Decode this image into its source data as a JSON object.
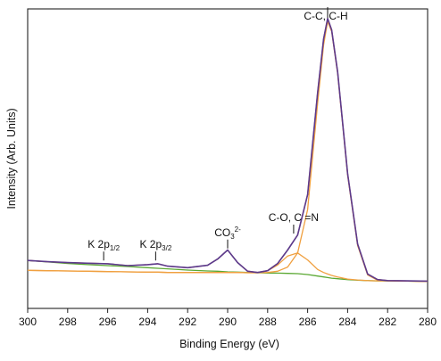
{
  "chart_data": {
    "type": "line",
    "title": "",
    "xlabel": "Binding Energy (eV)",
    "ylabel": "Intensity (Arb. Units)",
    "x_reversed": true,
    "xlim": [
      300,
      280
    ],
    "ylim": [
      0,
      100
    ],
    "x_ticks": [
      300,
      298,
      296,
      294,
      292,
      290,
      288,
      286,
      284,
      282,
      280
    ],
    "grid": false,
    "legend": "none",
    "x": [
      300,
      299,
      298,
      297,
      296,
      295,
      294,
      293.5,
      293,
      292,
      291,
      290.5,
      290,
      289.5,
      289,
      288.5,
      288,
      287.5,
      287,
      286.5,
      286,
      285.5,
      285.2,
      285,
      284.8,
      284.5,
      284,
      283.5,
      283,
      282.5,
      282,
      281,
      280
    ],
    "series": [
      {
        "color": "#e8413c",
        "values": [
          16.0,
          15.6,
          15.3,
          15.1,
          14.9,
          14.3,
          14.6,
          14.9,
          14.1,
          13.6,
          14.4,
          16.5,
          19.5,
          15.3,
          12.4,
          12.0,
          12.6,
          15.0,
          19.5,
          24.5,
          38.0,
          72.0,
          90.0,
          96.8,
          93.0,
          79.0,
          45.0,
          21.5,
          11.5,
          9.6,
          9.3,
          9.2,
          9.1
        ]
      },
      {
        "color": "#5b3b8c",
        "values": [
          16.0,
          15.6,
          15.3,
          15.1,
          14.9,
          14.3,
          14.6,
          14.9,
          14.1,
          13.6,
          14.4,
          16.5,
          19.5,
          15.3,
          12.4,
          12.0,
          12.6,
          15.0,
          19.5,
          24.5,
          38.0,
          72.0,
          90.0,
          96.8,
          93.0,
          79.0,
          45.0,
          21.5,
          11.5,
          9.6,
          9.3,
          9.2,
          9.1
        ]
      },
      {
        "color": "#f0a040",
        "values": [
          12.7,
          12.6,
          12.5,
          12.4,
          12.3,
          12.2,
          12.1,
          12.1,
          12.0,
          12.0,
          12.0,
          12.0,
          12.0,
          12.0,
          11.9,
          11.9,
          12.0,
          12.4,
          13.8,
          18.5,
          33.0,
          68.5,
          88.0,
          95.8,
          92.5,
          78.5,
          44.5,
          21.0,
          11.2,
          9.4,
          9.2,
          9.1,
          9.0
        ]
      },
      {
        "color": "#f0a040",
        "values": [
          12.7,
          12.6,
          12.5,
          12.4,
          12.3,
          12.2,
          12.1,
          12.1,
          12.0,
          12.0,
          12.0,
          12.0,
          12.0,
          12.0,
          11.9,
          11.9,
          12.6,
          14.5,
          17.5,
          18.5,
          16.2,
          13.0,
          12.0,
          11.5,
          11.0,
          10.5,
          9.8,
          9.5,
          9.3,
          9.2,
          9.2,
          9.1,
          9.0
        ]
      },
      {
        "color": "#5aa832",
        "values": [
          16.0,
          15.5,
          15.0,
          14.6,
          14.3,
          14.0,
          13.6,
          13.4,
          13.2,
          12.8,
          12.5,
          12.4,
          12.2,
          12.1,
          12.0,
          11.9,
          11.8,
          11.8,
          11.7,
          11.6,
          11.3,
          10.8,
          10.5,
          10.3,
          10.1,
          9.9,
          9.6,
          9.4,
          9.3,
          9.2,
          9.2,
          9.1,
          9.0
        ]
      }
    ],
    "annotations": [
      {
        "x": 296.2,
        "y": 16.0,
        "label": "K 2p",
        "sub": "1/2",
        "sup": ""
      },
      {
        "x": 293.6,
        "y": 16.0,
        "label": "K 2p",
        "sub": "3/2",
        "sup": ""
      },
      {
        "x": 290.0,
        "y": 20.0,
        "label": "CO",
        "sub": "3",
        "sup": "2-"
      },
      {
        "x": 286.7,
        "y": 25.0,
        "label": "C-O, C =N",
        "sub": "",
        "sup": ""
      },
      {
        "x": 285.0,
        "y": 97.0,
        "label": "C-C, C-H",
        "sub": "",
        "sup": ""
      }
    ]
  }
}
